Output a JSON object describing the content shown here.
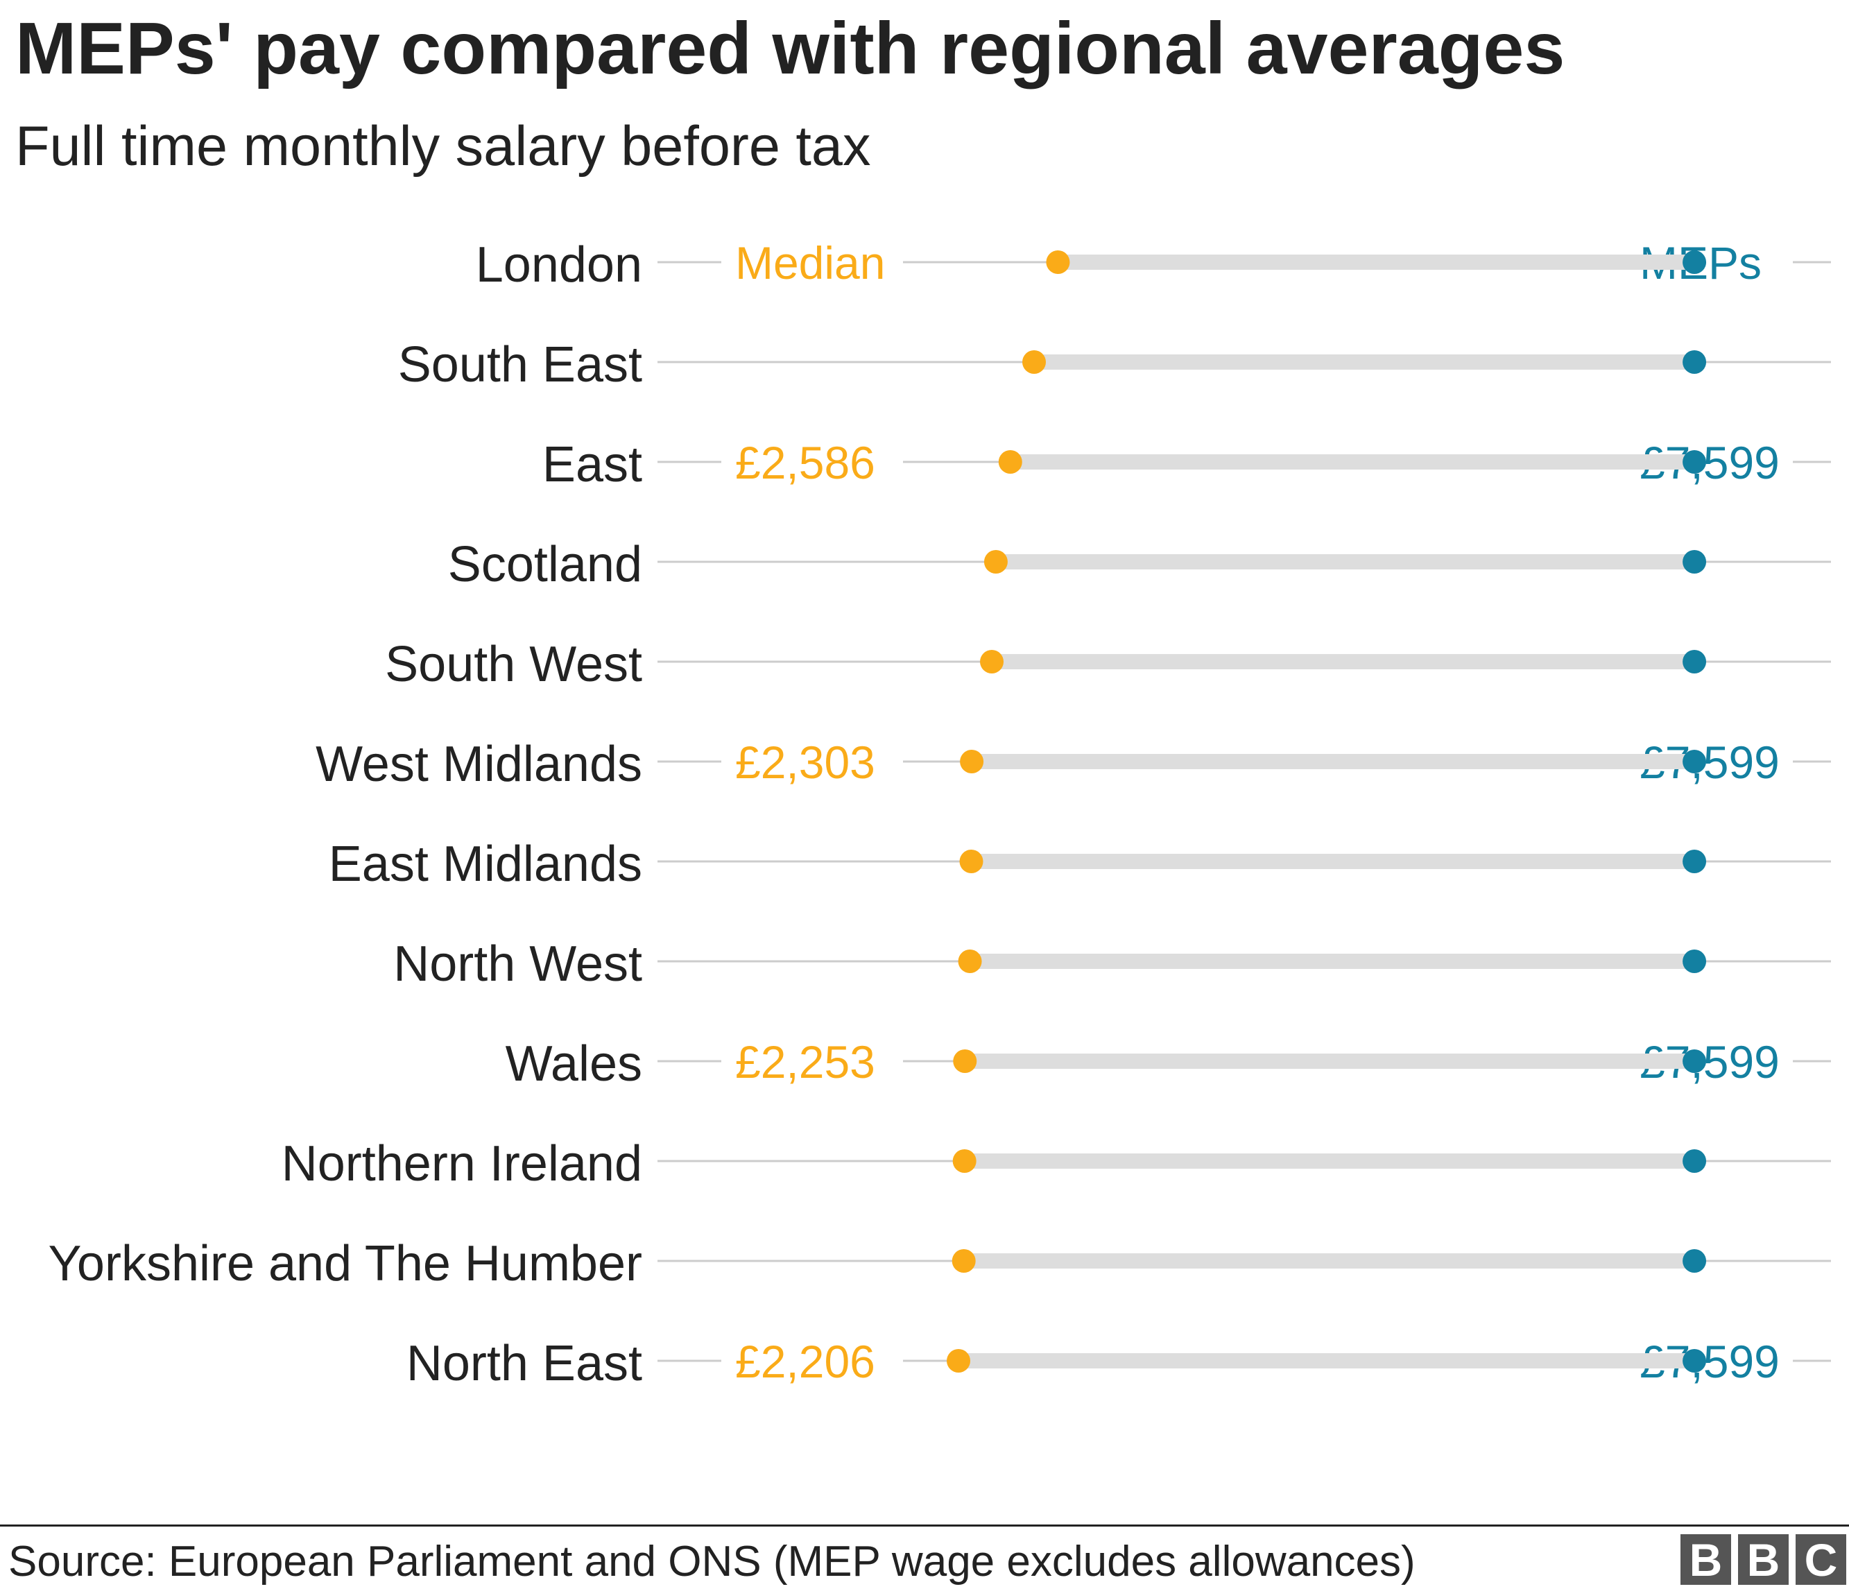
{
  "title": "MEPs' pay compared with regional averages",
  "subtitle": "Full time monthly salary before tax",
  "footer": {
    "source": "Source: European Parliament and ONS (MEP wage excludes allowances)",
    "logo_letters": [
      "B",
      "B",
      "C"
    ]
  },
  "colors": {
    "median": "#FAAB18",
    "meps": "#1380A1",
    "bar": "#DDDDDD",
    "gridline": "#CCCCCC",
    "text": "#222222"
  },
  "chart_data": {
    "type": "dumbbell",
    "series": [
      {
        "name": "Median",
        "color": "#FAAB18"
      },
      {
        "name": "MEPs",
        "color": "#1380A1"
      }
    ],
    "categories": [
      "London",
      "South East",
      "East",
      "Scotland",
      "South West",
      "West Midlands",
      "East Midlands",
      "North West",
      "Wales",
      "Northern Ireland",
      "Yorkshire and The Humber",
      "North East"
    ],
    "median": [
      2935,
      2760,
      2586,
      2480,
      2450,
      2303,
      2300,
      2290,
      2253,
      2250,
      2245,
      2206
    ],
    "meps": [
      7599,
      7599,
      7599,
      7599,
      7599,
      7599,
      7599,
      7599,
      7599,
      7599,
      7599,
      7599
    ],
    "xlim": [
      0,
      8600
    ],
    "value_labels": [
      {
        "category": "East",
        "median": "£2,586",
        "meps": "£7,599"
      },
      {
        "category": "West Midlands",
        "median": "£2,303",
        "meps": "£7,599"
      },
      {
        "category": "Wales",
        "median": "£2,253",
        "meps": "£7,599"
      },
      {
        "category": "North East",
        "median": "£2,206",
        "meps": "£7,599"
      }
    ],
    "series_labels_on": "London"
  }
}
